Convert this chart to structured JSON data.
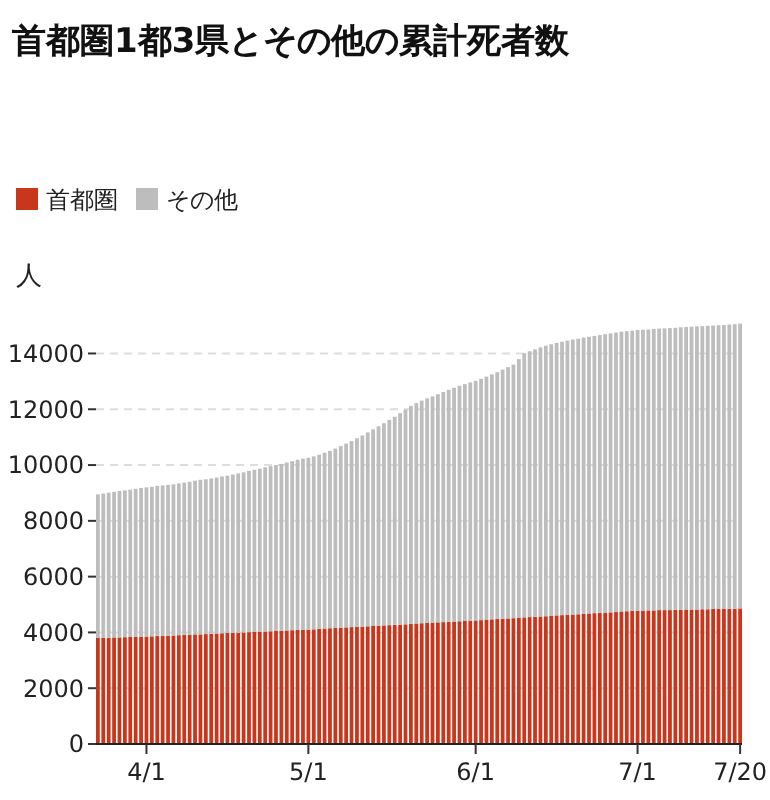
{
  "chart_data": {
    "type": "bar",
    "title": "首都圏1都3県とその他の累計死者数",
    "ylabel": "人",
    "stacked": true,
    "legend": "top left",
    "grid": "y",
    "ylim": [
      0,
      15200
    ],
    "yticks": [
      0,
      2000,
      4000,
      6000,
      8000,
      10000,
      12000,
      14000
    ],
    "categories": [
      null,
      null,
      null,
      null,
      null,
      null,
      null,
      null,
      null,
      "4/1",
      null,
      null,
      null,
      null,
      null,
      null,
      null,
      null,
      null,
      null,
      null,
      null,
      null,
      null,
      null,
      null,
      null,
      null,
      null,
      null,
      null,
      null,
      null,
      null,
      null,
      null,
      null,
      null,
      null,
      "5/1",
      null,
      null,
      null,
      null,
      null,
      null,
      null,
      null,
      null,
      null,
      null,
      null,
      null,
      null,
      null,
      null,
      null,
      null,
      null,
      null,
      null,
      null,
      null,
      null,
      null,
      null,
      null,
      null,
      null,
      null,
      "6/1",
      null,
      null,
      null,
      null,
      null,
      null,
      null,
      null,
      null,
      null,
      null,
      null,
      null,
      null,
      null,
      null,
      null,
      null,
      null,
      null,
      null,
      null,
      null,
      null,
      null,
      null,
      null,
      null,
      null,
      "7/1",
      null,
      null,
      null,
      null,
      null,
      null,
      null,
      null,
      null,
      null,
      null,
      null,
      null,
      null,
      null,
      null,
      null,
      null,
      "7/20"
    ],
    "series": [
      {
        "name": "首都圏",
        "color": "#c8361c",
        "values": [
          3800,
          3810,
          3810,
          3820,
          3820,
          3830,
          3840,
          3840,
          3850,
          3850,
          3860,
          3870,
          3870,
          3880,
          3890,
          3900,
          3910,
          3920,
          3930,
          3930,
          3940,
          3950,
          3960,
          3970,
          3980,
          3980,
          3990,
          4000,
          4010,
          4020,
          4030,
          4030,
          4040,
          4050,
          4060,
          4070,
          4080,
          4090,
          4090,
          4100,
          4110,
          4130,
          4140,
          4150,
          4160,
          4170,
          4180,
          4190,
          4200,
          4210,
          4220,
          4230,
          4240,
          4250,
          4260,
          4270,
          4280,
          4290,
          4310,
          4320,
          4330,
          4340,
          4350,
          4360,
          4370,
          4380,
          4390,
          4400,
          4410,
          4420,
          4430,
          4440,
          4460,
          4470,
          4480,
          4490,
          4500,
          4510,
          4530,
          4540,
          4550,
          4560,
          4570,
          4580,
          4600,
          4610,
          4620,
          4630,
          4640,
          4650,
          4660,
          4680,
          4690,
          4700,
          4710,
          4720,
          4730,
          4750,
          4760,
          4770,
          4780,
          4780,
          4790,
          4790,
          4800,
          4800,
          4800,
          4810,
          4810,
          4820,
          4820,
          4820,
          4830,
          4830,
          4840,
          4840,
          4840,
          4850,
          4850,
          4860
        ]
      },
      {
        "name": "その他",
        "color": "#bdbdbd",
        "values": [
          5150,
          5170,
          5200,
          5220,
          5250,
          5260,
          5280,
          5310,
          5330,
          5350,
          5360,
          5380,
          5400,
          5410,
          5420,
          5440,
          5460,
          5480,
          5510,
          5540,
          5550,
          5570,
          5590,
          5620,
          5640,
          5680,
          5710,
          5740,
          5780,
          5810,
          5840,
          5890,
          5920,
          5950,
          5980,
          6020,
          6060,
          6100,
          6140,
          6160,
          6200,
          6240,
          6300,
          6360,
          6430,
          6510,
          6590,
          6670,
          6760,
          6850,
          6950,
          7050,
          7150,
          7250,
          7360,
          7460,
          7580,
          7700,
          7810,
          7900,
          7980,
          8050,
          8110,
          8180,
          8250,
          8320,
          8380,
          8440,
          8490,
          8540,
          8590,
          8650,
          8710,
          8780,
          8850,
          8930,
          9010,
          9090,
          9270,
          9470,
          9530,
          9590,
          9650,
          9700,
          9730,
          9770,
          9800,
          9830,
          9860,
          9880,
          9910,
          9920,
          9940,
          9960,
          9980,
          10000,
          10020,
          10030,
          10040,
          10050,
          10060,
          10070,
          10070,
          10090,
          10090,
          10100,
          10110,
          10110,
          10130,
          10130,
          10140,
          10150,
          10150,
          10160,
          10160,
          10170,
          10180,
          10190,
          10200,
          10210
        ]
      }
    ]
  }
}
